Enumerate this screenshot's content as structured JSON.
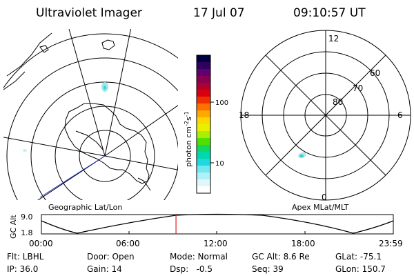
{
  "header": {
    "instrument": "Ultraviolet Imager",
    "date": "17 Jul 07",
    "time": "09:10:57 UT"
  },
  "left_map": {
    "label": "Geographic Lat/Lon"
  },
  "right_map": {
    "label": "Apex MLat/MLT",
    "mlt_labels": {
      "top": "12",
      "left": "18",
      "right": "6",
      "bottom": "0"
    },
    "lat_labels": [
      "80",
      "70",
      "60"
    ]
  },
  "colorbar": {
    "label_main": "photon cm",
    "label_exp1": "-2",
    "label_mid": "s",
    "label_exp2": "-1",
    "tick_labels": [
      "100",
      "10"
    ],
    "colors_top_to_bottom": [
      "#000040",
      "#300060",
      "#600070",
      "#8a0050",
      "#b00030",
      "#d80010",
      "#f03000",
      "#ff7000",
      "#ffa800",
      "#ffd800",
      "#e8f000",
      "#a8f000",
      "#50e000",
      "#10d860",
      "#00d8b0",
      "#20d8e0",
      "#70e8f0",
      "#b0f0f8",
      "#e0f8fc",
      "#ffffff"
    ]
  },
  "altitude_plot": {
    "ylabel": "GC Alt",
    "yticks": [
      "9.0",
      "1.8"
    ],
    "xticks": [
      "00:00",
      "06:00",
      "12:00",
      "18:00",
      "23:59"
    ],
    "marker_time_hours": 9.18
  },
  "footer": {
    "row1": {
      "flt": "Flt: LBHL",
      "door": "Door: Open",
      "mode": "Mode: Normal",
      "gcalt": "GC Alt: 8.6 Re",
      "glat": "GLat: -75.1"
    },
    "row2": {
      "ip": "IP: 36.0",
      "gain": "Gain: 14",
      "dsp": "Dsp:   -0.5",
      "seq": "Seq: 39",
      "glon": "GLon: 150.7"
    }
  }
}
